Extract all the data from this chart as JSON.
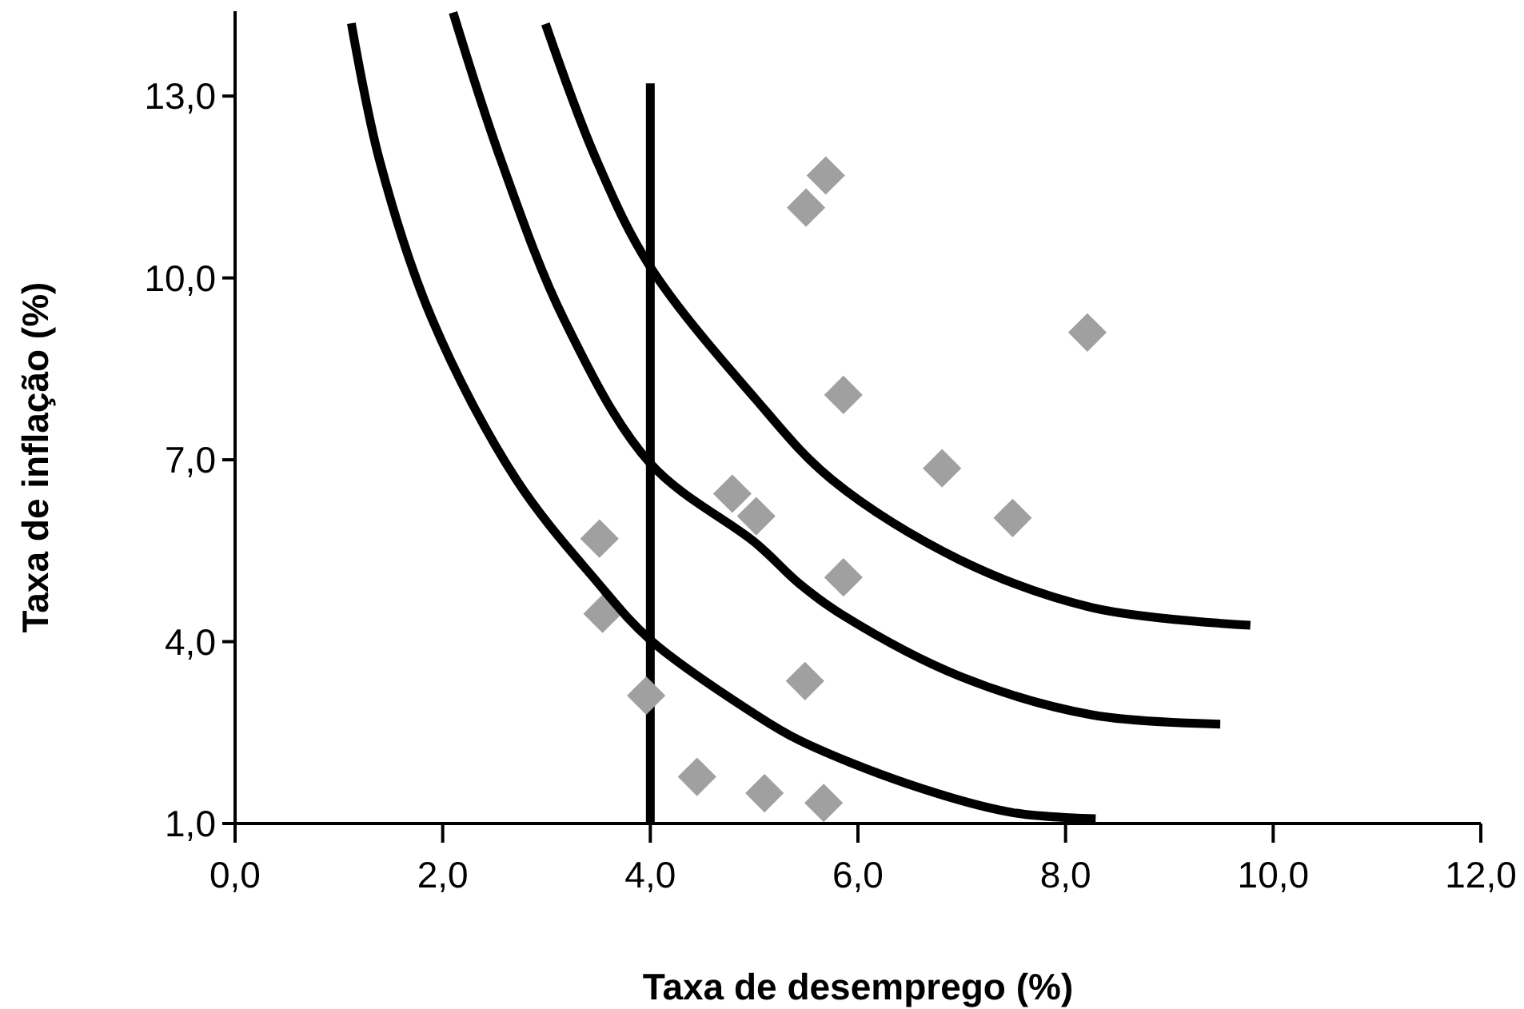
{
  "chart_data": {
    "type": "scatter",
    "xlabel": "Taxa de desemprego (%)",
    "ylabel": "Taxa de inflação (%)",
    "xlim": [
      0,
      12
    ],
    "ylim": [
      1,
      14.4
    ],
    "xticks": [
      {
        "value": 0,
        "label": "0,0"
      },
      {
        "value": 2,
        "label": "2,0"
      },
      {
        "value": 4,
        "label": "4,0"
      },
      {
        "value": 6,
        "label": "6,0"
      },
      {
        "value": 8,
        "label": "8,0"
      },
      {
        "value": 10,
        "label": "10,0"
      },
      {
        "value": 12,
        "label": "12,0"
      }
    ],
    "yticks": [
      {
        "value": 1,
        "label": "1,0"
      },
      {
        "value": 4,
        "label": "4,0"
      },
      {
        "value": 7,
        "label": "7,0"
      },
      {
        "value": 10,
        "label": "10,0"
      },
      {
        "value": 13,
        "label": "13,0"
      }
    ],
    "grid": false,
    "ref_lines": [
      {
        "axis": "x",
        "value": 4,
        "color": "#000000"
      }
    ],
    "series": [
      {
        "color": "#a0a0a0",
        "marker": "diamond",
        "x": [
          3.51,
          3.54,
          3.96,
          4.45,
          4.79,
          5.02,
          5.1,
          5.49,
          5.5,
          5.69,
          5.67,
          5.86,
          5.86,
          6.81,
          7.49,
          8.21
        ],
        "values": [
          5.7,
          4.46,
          3.11,
          1.77,
          6.44,
          6.07,
          1.5,
          3.35,
          11.16,
          11.69,
          1.34,
          8.07,
          5.06,
          6.86,
          6.04,
          9.1
        ]
      },
      {
        "type": "line",
        "color": "#000000",
        "marker": "none",
        "line_style": "solid",
        "x": [
          1.12,
          1.39,
          1.9,
          2.71,
          3.48,
          4.0,
          5.02,
          5.44,
          6.47,
          7.49,
          8.29
        ],
        "values": [
          14.2,
          11.95,
          9.31,
          6.67,
          5.0,
          4.03,
          2.79,
          2.37,
          1.66,
          1.18,
          1.08
        ]
      },
      {
        "type": "line",
        "color": "#000000",
        "marker": "none",
        "line_style": "solid",
        "x": [
          2.1,
          2.56,
          3.17,
          4.0,
          5.02,
          5.44,
          5.86,
          6.98,
          8.26,
          9.49
        ],
        "values": [
          14.38,
          11.95,
          9.31,
          6.94,
          5.62,
          4.95,
          4.43,
          3.43,
          2.79,
          2.64
        ]
      },
      {
        "type": "line",
        "color": "#000000",
        "marker": "none",
        "line_style": "solid",
        "x": [
          2.99,
          3.48,
          4.0,
          5.02,
          5.75,
          6.98,
          8.26,
          9.78
        ],
        "values": [
          14.19,
          11.95,
          10.18,
          7.99,
          6.67,
          5.35,
          4.56,
          4.27
        ]
      }
    ]
  }
}
